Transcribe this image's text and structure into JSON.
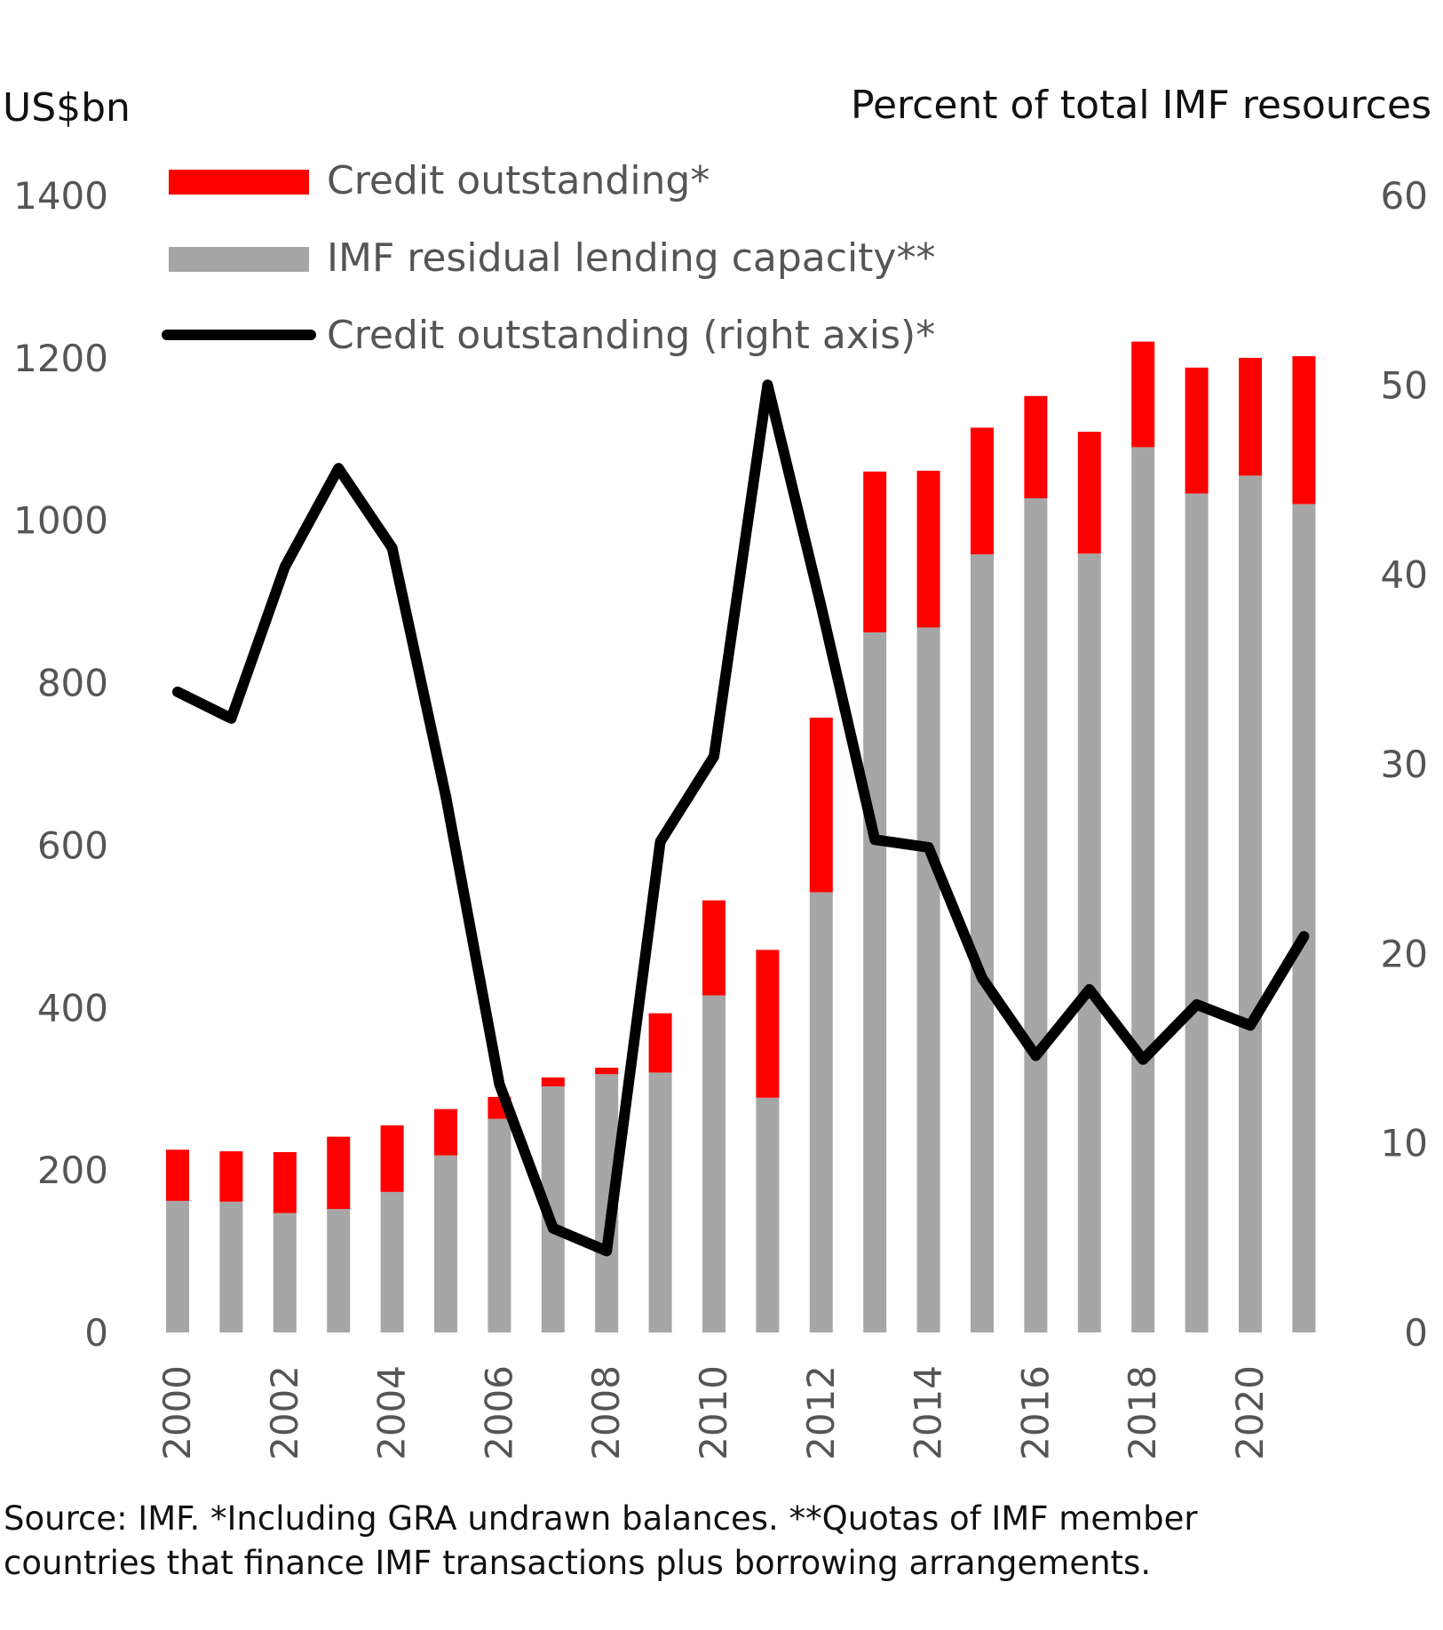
{
  "chart_data": {
    "type": "bar",
    "stacked": true,
    "left_axis_label": "US$bn",
    "right_axis_label": "Percent of total IMF resources",
    "left_ylim": [
      0,
      1400
    ],
    "left_ticks": [
      0,
      200,
      400,
      600,
      800,
      1000,
      1200,
      1400
    ],
    "right_ylim": [
      0,
      60
    ],
    "right_ticks": [
      0,
      10,
      20,
      30,
      40,
      50,
      60
    ],
    "x": [
      2000,
      2001,
      2002,
      2003,
      2004,
      2005,
      2006,
      2007,
      2008,
      2009,
      2010,
      2011,
      2012,
      2013,
      2014,
      2015,
      2016,
      2017,
      2018,
      2019,
      2020,
      2021
    ],
    "x_tick_labels": [
      "2000",
      "2002",
      "2004",
      "2006",
      "2008",
      "2010",
      "2012",
      "2014",
      "2016",
      "2018",
      "2020"
    ],
    "series": [
      {
        "name": "IMF residual lending capacity**",
        "axis": "left",
        "kind": "bar",
        "color": "#a6a6a6",
        "values": [
          162,
          161,
          147,
          152,
          173,
          218,
          263,
          303,
          318,
          320,
          415,
          289,
          542,
          862,
          868,
          958,
          1027,
          959,
          1090,
          1033,
          1055,
          1020
        ]
      },
      {
        "name": "Credit outstanding*",
        "axis": "left",
        "kind": "bar",
        "color": "#ff0000",
        "values": [
          63,
          62,
          75,
          89,
          82,
          57,
          27,
          11,
          8,
          73,
          117,
          182,
          215,
          198,
          193,
          156,
          126,
          150,
          130,
          155,
          145,
          182
        ]
      },
      {
        "name": "Credit outstanding (right axis)*",
        "axis": "right",
        "kind": "line",
        "color": "#000000",
        "values": [
          33.8,
          32.4,
          40.4,
          45.6,
          41.4,
          28.3,
          13.1,
          5.5,
          4.3,
          25.9,
          30.4,
          50.0,
          38.3,
          26.0,
          25.6,
          18.7,
          14.6,
          18.1,
          14.4,
          17.3,
          16.2,
          20.9
        ]
      }
    ],
    "legend_position": "top-left",
    "grid": false
  },
  "footnote_line1": "Source: IMF. *Including GRA undrawn balances. **Quotas of IMF member",
  "footnote_line2": "countries that finance IMF transactions plus borrowing arrangements."
}
